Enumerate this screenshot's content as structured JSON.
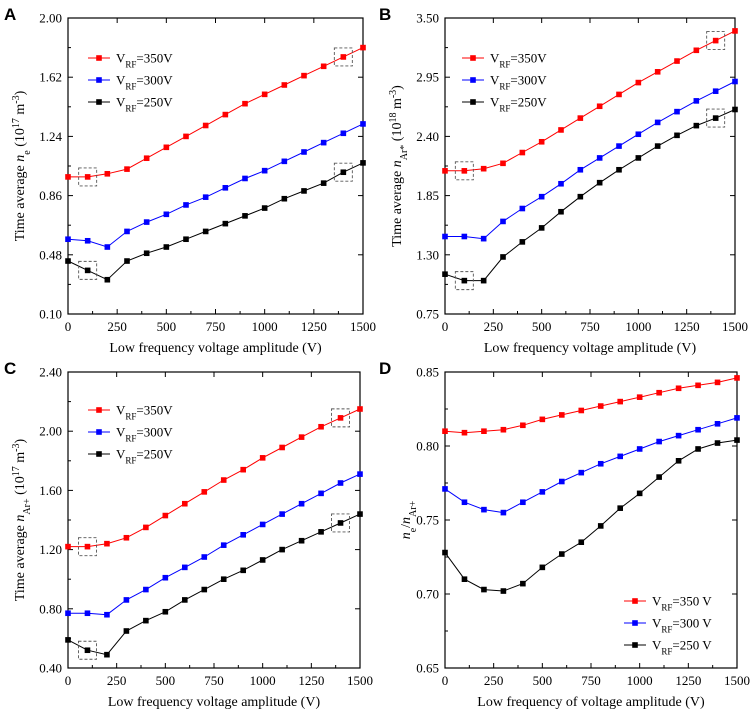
{
  "chart_data": [
    {
      "panel": "A",
      "type": "line",
      "xlabel": "Low frequency voltage amplitude (V)",
      "ylabel_prefix": "Time average ",
      "ylabel_var": "n",
      "ylabel_sub": "e",
      "ylabel_unit_pre": " (10",
      "ylabel_exp": "17",
      "ylabel_unit_mid": " m",
      "ylabel_unit_exp": "-3",
      "ylabel_unit_post": ")",
      "xlim": [
        0,
        1500
      ],
      "ylim": [
        0.1,
        2.0
      ],
      "xticks": [
        0,
        250,
        500,
        750,
        1000,
        1250,
        1500
      ],
      "yticks": [
        "0.10",
        "0.48",
        "0.86",
        "1.24",
        "1.62",
        "2.00"
      ],
      "x": [
        0,
        100,
        200,
        300,
        400,
        500,
        600,
        700,
        800,
        900,
        1000,
        1100,
        1200,
        1300,
        1400,
        1500
      ],
      "series": [
        {
          "name": "V",
          "sub": "RF",
          "suffix": "=350V",
          "color": "#ff0000",
          "values": [
            0.98,
            0.98,
            1.0,
            1.03,
            1.1,
            1.17,
            1.24,
            1.31,
            1.38,
            1.45,
            1.51,
            1.57,
            1.63,
            1.69,
            1.75,
            1.81
          ]
        },
        {
          "name": "V",
          "sub": "RF",
          "suffix": "=300V",
          "color": "#0000ff",
          "values": [
            0.58,
            0.57,
            0.53,
            0.63,
            0.69,
            0.74,
            0.8,
            0.85,
            0.91,
            0.97,
            1.02,
            1.08,
            1.14,
            1.2,
            1.26,
            1.32
          ]
        },
        {
          "name": "V",
          "sub": "RF",
          "suffix": "=250V",
          "color": "#000000",
          "values": [
            0.44,
            0.38,
            0.32,
            0.44,
            0.49,
            0.53,
            0.58,
            0.63,
            0.68,
            0.73,
            0.78,
            0.84,
            0.89,
            0.94,
            1.01,
            1.07
          ]
        }
      ]
    },
    {
      "panel": "B",
      "type": "line",
      "xlabel": "Low frequency voltage amplitude (V)",
      "ylabel_prefix": "Time average ",
      "ylabel_var": "n",
      "ylabel_sub": "Ar*",
      "ylabel_unit_pre": " (10",
      "ylabel_exp": "18",
      "ylabel_unit_mid": " m",
      "ylabel_unit_exp": "-3",
      "ylabel_unit_post": ")",
      "xlim": [
        0,
        1500
      ],
      "ylim": [
        0.75,
        3.5
      ],
      "xticks": [
        0,
        250,
        500,
        750,
        1000,
        1250,
        1500
      ],
      "yticks": [
        "0.75",
        "1.30",
        "1.85",
        "2.40",
        "2.95",
        "3.50"
      ],
      "x": [
        0,
        100,
        200,
        300,
        400,
        500,
        600,
        700,
        800,
        900,
        1000,
        1100,
        1200,
        1300,
        1400,
        1500
      ],
      "series": [
        {
          "name": "V",
          "sub": "RF",
          "suffix": "=350V",
          "color": "#ff0000",
          "values": [
            2.08,
            2.08,
            2.1,
            2.15,
            2.25,
            2.35,
            2.46,
            2.57,
            2.68,
            2.79,
            2.9,
            3.0,
            3.1,
            3.2,
            3.29,
            3.38
          ]
        },
        {
          "name": "V",
          "sub": "RF",
          "suffix": "=300V",
          "color": "#0000ff",
          "values": [
            1.47,
            1.47,
            1.45,
            1.61,
            1.73,
            1.84,
            1.96,
            2.09,
            2.2,
            2.31,
            2.42,
            2.53,
            2.63,
            2.73,
            2.82,
            2.91
          ]
        },
        {
          "name": "V",
          "sub": "RF",
          "suffix": "=250V",
          "color": "#000000",
          "values": [
            1.12,
            1.06,
            1.06,
            1.28,
            1.42,
            1.55,
            1.7,
            1.84,
            1.97,
            2.09,
            2.2,
            2.31,
            2.41,
            2.5,
            2.57,
            2.65
          ]
        }
      ]
    },
    {
      "panel": "C",
      "type": "line",
      "xlabel": "Low frequency voltage amplitude (V)",
      "ylabel_prefix": "Time average ",
      "ylabel_var": "n",
      "ylabel_sub": "Ar+",
      "ylabel_unit_pre": " (10",
      "ylabel_exp": "17",
      "ylabel_unit_mid": " m",
      "ylabel_unit_exp": "-3",
      "ylabel_unit_post": ")",
      "xlim": [
        0,
        1500
      ],
      "ylim": [
        0.4,
        2.4
      ],
      "xticks": [
        0,
        250,
        500,
        750,
        1000,
        1250,
        1500
      ],
      "yticks": [
        "0.40",
        "0.80",
        "1.20",
        "1.60",
        "2.00",
        "2.40"
      ],
      "x": [
        0,
        100,
        200,
        300,
        400,
        500,
        600,
        700,
        800,
        900,
        1000,
        1100,
        1200,
        1300,
        1400,
        1500
      ],
      "series": [
        {
          "name": "V",
          "sub": "RF",
          "suffix": "=350V",
          "color": "#ff0000",
          "values": [
            1.22,
            1.22,
            1.24,
            1.28,
            1.35,
            1.43,
            1.51,
            1.59,
            1.67,
            1.74,
            1.82,
            1.89,
            1.96,
            2.03,
            2.09,
            2.15
          ]
        },
        {
          "name": "V",
          "sub": "RF",
          "suffix": "=300V",
          "color": "#0000ff",
          "values": [
            0.77,
            0.77,
            0.76,
            0.86,
            0.93,
            1.01,
            1.08,
            1.15,
            1.23,
            1.3,
            1.37,
            1.44,
            1.51,
            1.58,
            1.65,
            1.71
          ]
        },
        {
          "name": "V",
          "sub": "RF",
          "suffix": "=250V",
          "color": "#000000",
          "values": [
            0.59,
            0.52,
            0.49,
            0.65,
            0.72,
            0.78,
            0.86,
            0.93,
            1.0,
            1.06,
            1.13,
            1.2,
            1.26,
            1.32,
            1.38,
            1.44
          ]
        }
      ]
    },
    {
      "panel": "D",
      "type": "line",
      "xlabel": "Low frequency of voltage amplitude (V)",
      "ylabel_var1": "n",
      "ylabel_sub1": "e",
      "ylabel_slash": "/",
      "ylabel_var2": "n",
      "ylabel_sub2": "Ar+",
      "xlim": [
        0,
        1500
      ],
      "ylim": [
        0.65,
        0.85
      ],
      "xticks": [
        0,
        250,
        500,
        750,
        1000,
        1250,
        1500
      ],
      "yticks": [
        "0.65",
        "0.70",
        "0.75",
        "0.80",
        "0.85"
      ],
      "x": [
        0,
        100,
        200,
        300,
        400,
        500,
        600,
        700,
        800,
        900,
        1000,
        1100,
        1200,
        1300,
        1400,
        1500
      ],
      "series": [
        {
          "name": "V",
          "sub": "RF",
          "suffix": "=350 V",
          "color": "#ff0000",
          "values": [
            0.81,
            0.809,
            0.81,
            0.811,
            0.814,
            0.818,
            0.821,
            0.824,
            0.827,
            0.83,
            0.833,
            0.836,
            0.839,
            0.841,
            0.843,
            0.846
          ]
        },
        {
          "name": "V",
          "sub": "RF",
          "suffix": "=300 V",
          "color": "#0000ff",
          "values": [
            0.771,
            0.762,
            0.757,
            0.755,
            0.762,
            0.769,
            0.776,
            0.782,
            0.788,
            0.793,
            0.798,
            0.803,
            0.807,
            0.811,
            0.815,
            0.819
          ]
        },
        {
          "name": "V",
          "sub": "RF",
          "suffix": "=250 V",
          "color": "#000000",
          "values": [
            0.728,
            0.71,
            0.703,
            0.702,
            0.707,
            0.718,
            0.727,
            0.735,
            0.746,
            0.758,
            0.768,
            0.779,
            0.79,
            0.798,
            0.802,
            0.804
          ]
        }
      ]
    }
  ]
}
